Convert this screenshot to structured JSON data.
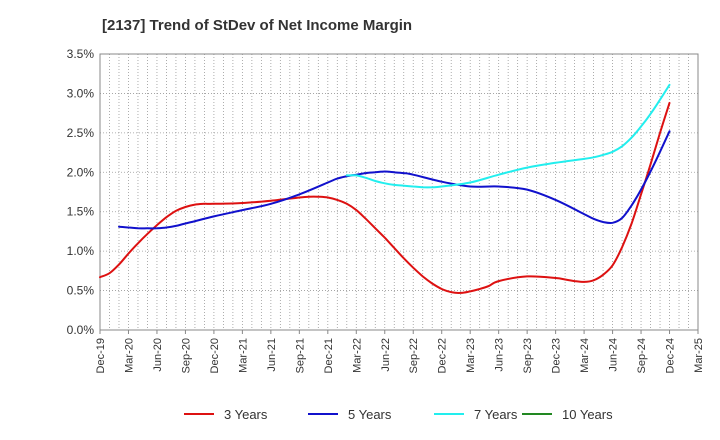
{
  "chart_data": {
    "type": "line",
    "title": "[2137]  Trend of StDev of Net Income Margin",
    "xlabel": "",
    "ylabel": "",
    "y_ticks": [
      "0.0%",
      "0.5%",
      "1.0%",
      "1.5%",
      "2.0%",
      "2.5%",
      "3.0%",
      "3.5%"
    ],
    "ylim": [
      0,
      3.5
    ],
    "x_ticks": [
      "Dec-19",
      "Mar-20",
      "Jun-20",
      "Sep-20",
      "Dec-20",
      "Mar-21",
      "Jun-21",
      "Sep-21",
      "Dec-21",
      "Mar-22",
      "Jun-22",
      "Sep-22",
      "Dec-22",
      "Mar-23",
      "Jun-23",
      "Sep-23",
      "Dec-23",
      "Mar-24",
      "Jun-24",
      "Sep-24",
      "Dec-24",
      "Mar-25"
    ],
    "grid": true,
    "legend_position": "bottom",
    "series": [
      {
        "name": "3 Years",
        "color": "#dd1111",
        "x": [
          "Dec-19",
          "Jan-20",
          "Feb-20",
          "Mar-20",
          "Apr-20",
          "May-20",
          "Jun-20",
          "Jul-20",
          "Aug-20",
          "Sep-20",
          "Oct-20",
          "Nov-20",
          "Dec-20",
          "Mar-21",
          "Jun-21",
          "Sep-21",
          "Oct-21",
          "Nov-21",
          "Dec-21",
          "Jan-22",
          "Feb-22",
          "Mar-22",
          "Apr-22",
          "May-22",
          "Jun-22",
          "Jul-22",
          "Aug-22",
          "Sep-22",
          "Oct-22",
          "Nov-22",
          "Dec-22",
          "Jan-23",
          "Feb-23",
          "Mar-23",
          "Apr-23",
          "May-23",
          "Jun-23",
          "Sep-23",
          "Dec-23",
          "Jan-24",
          "Feb-24",
          "Mar-24",
          "Apr-24",
          "May-24",
          "Jun-24",
          "Jul-24",
          "Aug-24",
          "Sep-24",
          "Oct-24",
          "Nov-24",
          "Dec-24"
        ],
        "values": [
          0.67,
          0.72,
          0.83,
          0.97,
          1.1,
          1.22,
          1.33,
          1.43,
          1.51,
          1.56,
          1.59,
          1.6,
          1.6,
          1.61,
          1.64,
          1.68,
          1.69,
          1.69,
          1.68,
          1.65,
          1.6,
          1.52,
          1.41,
          1.29,
          1.17,
          1.04,
          0.91,
          0.79,
          0.68,
          0.59,
          0.52,
          0.48,
          0.47,
          0.49,
          0.52,
          0.56,
          0.62,
          0.68,
          0.66,
          0.64,
          0.62,
          0.61,
          0.63,
          0.7,
          0.82,
          1.05,
          1.35,
          1.72,
          2.1,
          2.5,
          2.88
        ]
      },
      {
        "name": "5 Years",
        "color": "#1111cc",
        "x": [
          "Feb-20",
          "Mar-20",
          "Apr-20",
          "May-20",
          "Jun-20",
          "Jul-20",
          "Aug-20",
          "Sep-20",
          "Dec-20",
          "Mar-21",
          "Jun-21",
          "Sep-21",
          "Dec-21",
          "Jan-22",
          "Feb-22",
          "Mar-22",
          "Apr-22",
          "May-22",
          "Jun-22",
          "Jul-22",
          "Aug-22",
          "Sep-22",
          "Dec-22",
          "Mar-23",
          "Jun-23",
          "Sep-23",
          "Dec-23",
          "Mar-24",
          "Apr-24",
          "May-24",
          "Jun-24",
          "Jul-24",
          "Aug-24",
          "Sep-24",
          "Oct-24",
          "Nov-24",
          "Dec-24"
        ],
        "values": [
          1.31,
          1.3,
          1.29,
          1.29,
          1.29,
          1.3,
          1.32,
          1.35,
          1.44,
          1.52,
          1.6,
          1.72,
          1.87,
          1.92,
          1.95,
          1.97,
          1.99,
          2.0,
          2.01,
          2.0,
          1.99,
          1.97,
          1.88,
          1.82,
          1.82,
          1.78,
          1.65,
          1.47,
          1.41,
          1.37,
          1.36,
          1.42,
          1.58,
          1.78,
          2.01,
          2.26,
          2.52
        ]
      },
      {
        "name": "7 Years",
        "color": "#22eeee",
        "x": [
          "Feb-22",
          "Mar-22",
          "Apr-22",
          "May-22",
          "Jun-22",
          "Jul-22",
          "Aug-22",
          "Sep-22",
          "Oct-22",
          "Nov-22",
          "Dec-22",
          "Mar-23",
          "Jun-23",
          "Sep-23",
          "Dec-23",
          "Mar-24",
          "Apr-24",
          "May-24",
          "Jun-24",
          "Jul-24",
          "Aug-24",
          "Sep-24",
          "Oct-24",
          "Nov-24",
          "Dec-24"
        ],
        "values": [
          1.96,
          1.96,
          1.93,
          1.89,
          1.86,
          1.84,
          1.83,
          1.82,
          1.81,
          1.81,
          1.82,
          1.87,
          1.97,
          2.06,
          2.12,
          2.17,
          2.19,
          2.22,
          2.26,
          2.33,
          2.44,
          2.58,
          2.74,
          2.92,
          3.11
        ]
      },
      {
        "name": "10 Years",
        "color": "#228822",
        "x": [],
        "values": []
      }
    ]
  }
}
